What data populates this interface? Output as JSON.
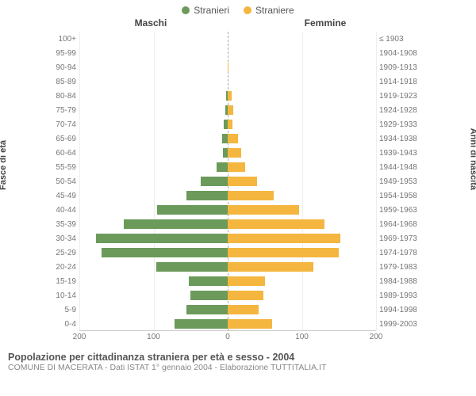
{
  "chart": {
    "type": "population-pyramid",
    "legend": [
      {
        "label": "Stranieri",
        "color": "#6b9a5b"
      },
      {
        "label": "Straniere",
        "color": "#f4b63f"
      }
    ],
    "header_left": "Maschi",
    "header_right": "Femmine",
    "ylabel_left": "Fasce di età",
    "ylabel_right": "Anni di nascita",
    "xlim": 200,
    "xticks_left": [
      200,
      100,
      0
    ],
    "xticks_right": [
      0,
      100,
      200
    ],
    "grid_color": "#eeeeee",
    "background_color": "#ffffff",
    "bar_colors": {
      "male": "#6b9a5b",
      "female": "#f4b63f"
    },
    "rows": [
      {
        "age": "100+",
        "birth": "≤ 1903",
        "m": 0,
        "f": 0
      },
      {
        "age": "95-99",
        "birth": "1904-1908",
        "m": 0,
        "f": 0
      },
      {
        "age": "90-94",
        "birth": "1909-1913",
        "m": 0,
        "f": 1
      },
      {
        "age": "85-89",
        "birth": "1914-1918",
        "m": 0,
        "f": 0
      },
      {
        "age": "80-84",
        "birth": "1919-1923",
        "m": 2,
        "f": 5
      },
      {
        "age": "75-79",
        "birth": "1924-1928",
        "m": 3,
        "f": 8
      },
      {
        "age": "70-74",
        "birth": "1929-1933",
        "m": 5,
        "f": 6
      },
      {
        "age": "65-69",
        "birth": "1934-1938",
        "m": 7,
        "f": 14
      },
      {
        "age": "60-64",
        "birth": "1939-1943",
        "m": 6,
        "f": 18
      },
      {
        "age": "55-59",
        "birth": "1944-1948",
        "m": 15,
        "f": 24
      },
      {
        "age": "50-54",
        "birth": "1949-1953",
        "m": 36,
        "f": 40
      },
      {
        "age": "45-49",
        "birth": "1954-1958",
        "m": 56,
        "f": 62
      },
      {
        "age": "40-44",
        "birth": "1959-1963",
        "m": 95,
        "f": 96
      },
      {
        "age": "35-39",
        "birth": "1964-1968",
        "m": 140,
        "f": 130
      },
      {
        "age": "30-34",
        "birth": "1969-1973",
        "m": 178,
        "f": 152
      },
      {
        "age": "25-29",
        "birth": "1974-1978",
        "m": 170,
        "f": 150
      },
      {
        "age": "20-24",
        "birth": "1979-1983",
        "m": 96,
        "f": 116
      },
      {
        "age": "15-19",
        "birth": "1984-1988",
        "m": 52,
        "f": 50
      },
      {
        "age": "10-14",
        "birth": "1989-1993",
        "m": 50,
        "f": 48
      },
      {
        "age": "5-9",
        "birth": "1994-1998",
        "m": 56,
        "f": 42
      },
      {
        "age": "0-4",
        "birth": "1999-2003",
        "m": 72,
        "f": 60
      }
    ],
    "caption_title": "Popolazione per cittadinanza straniera per età e sesso - 2004",
    "caption_sub": "COMUNE DI MACERATA - Dati ISTAT 1° gennaio 2004 - Elaborazione TUTTITALIA.IT"
  }
}
